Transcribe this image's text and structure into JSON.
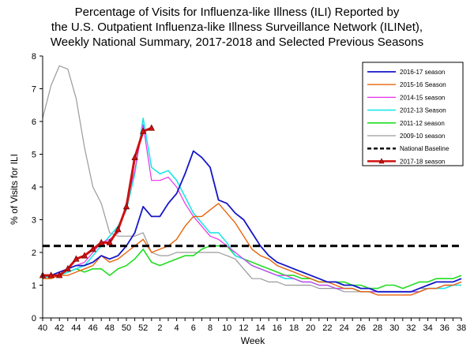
{
  "chart_data": {
    "type": "line",
    "title_lines": [
      "Percentage of Visits for Influenza-like Illness (ILI) Reported by",
      "the U.S. Outpatient Influenza-like Illness Surveillance Network (ILINet),",
      "Weekly National Summary, 2017-2018 and Selected Previous Seasons"
    ],
    "xlabel": "Week",
    "ylabel": "% of Visits for ILI",
    "x_tick_labels": [
      "40",
      "42",
      "44",
      "46",
      "48",
      "50",
      "52",
      "2",
      "4",
      "6",
      "8",
      "10",
      "12",
      "14",
      "16",
      "18",
      "20",
      "22",
      "24",
      "26",
      "28",
      "30",
      "32",
      "34",
      "36",
      "38"
    ],
    "ylim": [
      0,
      8
    ],
    "y_ticks": [
      0,
      1,
      2,
      3,
      4,
      5,
      6,
      7,
      8
    ],
    "legend_position": "top-right",
    "baseline": {
      "name": "National Baseline",
      "value": 2.2,
      "color": "#000000"
    },
    "series": [
      {
        "name": "2016-17 season",
        "color": "#1515c8",
        "width": 1.8,
        "values": [
          1.3,
          1.3,
          1.4,
          1.5,
          1.6,
          1.6,
          1.7,
          1.9,
          1.8,
          1.9,
          2.2,
          2.6,
          3.4,
          3.1,
          3.1,
          3.5,
          3.8,
          4.4,
          5.1,
          4.9,
          4.6,
          3.6,
          3.5,
          3.2,
          3.0,
          2.6,
          2.2,
          1.9,
          1.7,
          1.6,
          1.5,
          1.4,
          1.3,
          1.2,
          1.1,
          1.1,
          1.0,
          1.0,
          0.9,
          0.9,
          0.8,
          0.8,
          0.8,
          0.8,
          0.8,
          0.9,
          1.0,
          1.1,
          1.1,
          1.1,
          1.2
        ]
      },
      {
        "name": "2015-16 Season",
        "color": "#e8640a",
        "width": 1.4,
        "values": [
          1.2,
          1.2,
          1.3,
          1.3,
          1.4,
          1.5,
          1.6,
          1.9,
          1.7,
          1.8,
          2.0,
          2.2,
          2.4,
          2.0,
          2.1,
          2.2,
          2.4,
          2.8,
          3.1,
          3.1,
          3.3,
          3.5,
          3.2,
          2.9,
          2.5,
          2.1,
          1.9,
          1.8,
          1.6,
          1.5,
          1.4,
          1.3,
          1.2,
          1.1,
          1.1,
          1.0,
          0.9,
          0.9,
          0.8,
          0.8,
          0.7,
          0.7,
          0.7,
          0.7,
          0.7,
          0.8,
          0.9,
          0.9,
          1.0,
          1.0,
          1.1
        ]
      },
      {
        "name": "2014-15 season",
        "color": "#e830e8",
        "width": 1.2,
        "values": [
          1.3,
          1.3,
          1.4,
          1.5,
          1.6,
          1.7,
          2.0,
          2.3,
          2.4,
          2.6,
          3.5,
          4.5,
          5.9,
          4.2,
          4.2,
          4.3,
          4.0,
          3.5,
          3.1,
          2.8,
          2.5,
          2.4,
          2.2,
          2.0,
          1.8,
          1.6,
          1.5,
          1.4,
          1.3,
          1.3,
          1.2,
          1.1,
          1.1,
          1.0,
          1.0,
          0.9,
          0.9,
          0.9,
          0.8,
          0.8,
          0.8,
          0.8,
          0.8,
          0.8,
          0.8,
          0.8,
          0.9,
          0.9,
          1.0,
          1.0,
          1.1
        ]
      },
      {
        "name": "2012-13 Season",
        "color": "#1ee6e6",
        "width": 1.6,
        "values": [
          1.2,
          1.3,
          1.3,
          1.4,
          1.5,
          1.6,
          1.9,
          2.2,
          2.5,
          2.8,
          3.3,
          4.4,
          6.1,
          4.6,
          4.4,
          4.5,
          4.2,
          3.7,
          3.2,
          2.9,
          2.6,
          2.6,
          2.3,
          1.9,
          1.8,
          1.6,
          1.5,
          1.4,
          1.3,
          1.2,
          1.2,
          1.1,
          1.1,
          1.0,
          1.0,
          0.9,
          0.9,
          0.9,
          0.8,
          0.8,
          0.8,
          0.8,
          0.8,
          0.8,
          0.8,
          0.8,
          0.9,
          0.9,
          0.9,
          1.0,
          1.0
        ]
      },
      {
        "name": "2011-12 season",
        "color": "#22dd22",
        "width": 1.6,
        "values": [
          1.3,
          1.3,
          1.3,
          1.4,
          1.5,
          1.4,
          1.5,
          1.5,
          1.3,
          1.5,
          1.6,
          1.8,
          2.1,
          1.7,
          1.6,
          1.7,
          1.8,
          1.9,
          1.9,
          2.1,
          2.2,
          2.2,
          2.2,
          1.9,
          1.8,
          1.7,
          1.6,
          1.5,
          1.4,
          1.3,
          1.3,
          1.2,
          1.2,
          1.1,
          1.1,
          1.1,
          1.1,
          1.0,
          1.0,
          0.9,
          0.9,
          1.0,
          1.0,
          0.9,
          1.0,
          1.1,
          1.1,
          1.2,
          1.2,
          1.2,
          1.3
        ]
      },
      {
        "name": "2009-10 season",
        "color": "#9a9a9a",
        "width": 1.2,
        "values": [
          6.1,
          7.1,
          7.7,
          7.6,
          6.7,
          5.2,
          4.0,
          3.5,
          2.6,
          2.5,
          2.5,
          2.5,
          2.6,
          2.0,
          1.9,
          1.9,
          2.0,
          2.0,
          2.0,
          2.0,
          2.0,
          2.0,
          1.9,
          1.8,
          1.5,
          1.2,
          1.2,
          1.1,
          1.1,
          1.0,
          1.0,
          1.0,
          1.0,
          0.9,
          0.9,
          0.9,
          0.8,
          0.8,
          0.8,
          0.8,
          0.8,
          0.8,
          0.8,
          0.8,
          0.8,
          0.9,
          0.9,
          0.9,
          1.0,
          1.0,
          1.0
        ]
      }
    ],
    "current_season": {
      "name": "2017-18 season",
      "color": "#d01010",
      "values": [
        1.3,
        1.3,
        1.3,
        1.5,
        1.8,
        1.9,
        2.1,
        2.3,
        2.3,
        2.7,
        3.4,
        4.9,
        5.7,
        5.8
      ]
    },
    "legend_order": [
      "2016-17 season",
      "2015-16 Season",
      "2014-15 season",
      "2012-13 Season",
      "2011-12 season",
      "2009-10 season",
      "National Baseline",
      "2017-18 season"
    ]
  }
}
